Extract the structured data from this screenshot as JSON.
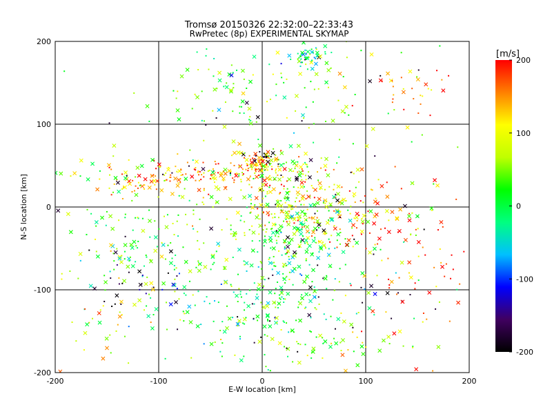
{
  "chart_data": {
    "type": "scatter",
    "title": "Tromsø 20150326 22:32:00–22:33:43",
    "subtitle": "RwPretec (8p) EXPERIMENTAL SKYMAP",
    "xlabel": "E-W location [km]",
    "ylabel": "N-S location [km]",
    "xlim": [
      -200,
      200
    ],
    "ylim": [
      -200,
      200
    ],
    "xticks": [
      "-200",
      "-100",
      "0",
      "100",
      "200"
    ],
    "yticks": [
      "-200",
      "-100",
      "0",
      "100",
      "200"
    ],
    "grid": true,
    "colorbar": {
      "label": "[m/s]",
      "range": [
        -200,
        200
      ],
      "ticks": [
        "-200",
        "-100",
        "0",
        "100",
        "200"
      ],
      "colormap": [
        "#000000",
        "#400060",
        "#0000ff",
        "#00c0ff",
        "#00ff80",
        "#00ff00",
        "#c0ff00",
        "#ffff00",
        "#ff8000",
        "#ff0000"
      ]
    },
    "marker_types": [
      "dot",
      "cross"
    ],
    "clusters": [
      {
        "x": 45,
        "y": 182,
        "sx": 8,
        "sy": 6,
        "n": 55,
        "v": -10
      },
      {
        "x": 0,
        "y": 55,
        "sx": 10,
        "sy": 6,
        "n": 60,
        "v": 140
      },
      {
        "x": 2,
        "y": 62,
        "sx": 4,
        "sy": 3,
        "n": 15,
        "v": -190
      },
      {
        "x": -50,
        "y": 38,
        "sx": 50,
        "sy": 10,
        "n": 140,
        "v": 150
      },
      {
        "x": -115,
        "y": 30,
        "sx": 20,
        "sy": 8,
        "n": 35,
        "v": 130
      },
      {
        "x": 20,
        "y": 50,
        "sx": 25,
        "sy": 10,
        "n": 60,
        "v": 60
      },
      {
        "x": 30,
        "y": 0,
        "sx": 40,
        "sy": 25,
        "n": 200,
        "v": 90
      },
      {
        "x": 30,
        "y": -40,
        "sx": 30,
        "sy": 25,
        "n": 160,
        "v": 10
      },
      {
        "x": 10,
        "y": -110,
        "sx": 50,
        "sy": 30,
        "n": 180,
        "v": 0
      },
      {
        "x": 80,
        "y": -10,
        "sx": 45,
        "sy": 30,
        "n": 90,
        "v": 180
      },
      {
        "x": 60,
        "y": -170,
        "sx": 50,
        "sy": 15,
        "n": 70,
        "v": 50
      },
      {
        "x": -40,
        "y": 140,
        "sx": 25,
        "sy": 30,
        "n": 45,
        "v": 20
      },
      {
        "x": 30,
        "y": 140,
        "sx": 50,
        "sy": 25,
        "n": 50,
        "v": 60
      },
      {
        "x": 150,
        "y": 140,
        "sx": 22,
        "sy": 20,
        "n": 35,
        "v": 160
      },
      {
        "x": -140,
        "y": -40,
        "sx": 35,
        "sy": 40,
        "n": 70,
        "v": 20
      },
      {
        "x": -80,
        "y": -60,
        "sx": 40,
        "sy": 45,
        "n": 80,
        "v": 40
      },
      {
        "x": -120,
        "y": -100,
        "sx": 20,
        "sy": 15,
        "n": 25,
        "v": -170
      },
      {
        "x": 150,
        "y": -80,
        "sx": 30,
        "sy": 50,
        "n": 60,
        "v": 170
      },
      {
        "x": -150,
        "y": -150,
        "sx": 30,
        "sy": 30,
        "n": 35,
        "v": 100
      },
      {
        "x": 0,
        "y": 0,
        "sx": 120,
        "sy": 110,
        "n": 200,
        "v": 40
      }
    ]
  }
}
